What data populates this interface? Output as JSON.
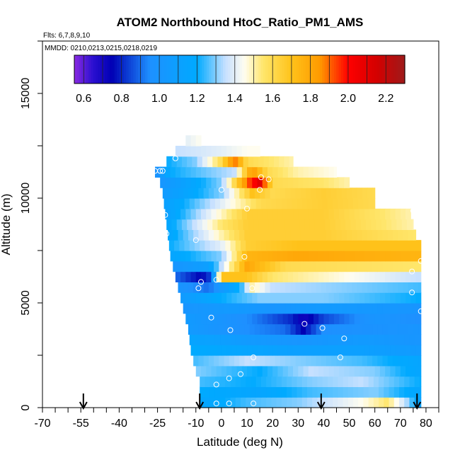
{
  "chart_data": {
    "type": "heatmap",
    "title": "ATOM2 Northbound HtoC_Ratio_PM1_AMS",
    "flights_label": "Flts: 6,7,8,9,10",
    "dates_label": "MMDD: 0210,0213,0215,0218,0219",
    "xlabel": "Latitude (deg N)",
    "ylabel": "Altitude (m)",
    "xlim": [
      -70,
      85
    ],
    "ylim": [
      0,
      17500
    ],
    "x_ticks": [
      -70,
      -55,
      -40,
      -25,
      -10,
      0,
      10,
      20,
      30,
      40,
      50,
      60,
      70,
      80
    ],
    "y_ticks": [
      0,
      5000,
      10000,
      15000
    ],
    "colorbar": {
      "ticks": [
        "0.6",
        "0.8",
        "1.0",
        "1.2",
        "1.4",
        "1.6",
        "1.8",
        "2.0",
        "2.2"
      ],
      "range": [
        0.55,
        2.3
      ],
      "stops": [
        {
          "v": 0.55,
          "c": "#8a2be2"
        },
        {
          "v": 0.65,
          "c": "#2a0fd0"
        },
        {
          "v": 0.75,
          "c": "#0000b4"
        },
        {
          "v": 0.95,
          "c": "#1e90ff"
        },
        {
          "v": 1.2,
          "c": "#00aaff"
        },
        {
          "v": 1.35,
          "c": "#c6e0ff"
        },
        {
          "v": 1.45,
          "c": "#fffdf0"
        },
        {
          "v": 1.55,
          "c": "#ffe66b"
        },
        {
          "v": 1.7,
          "c": "#ffc21a"
        },
        {
          "v": 1.85,
          "c": "#ff9a00"
        },
        {
          "v": 2.0,
          "c": "#ff0000"
        },
        {
          "v": 2.15,
          "c": "#d40000"
        },
        {
          "v": 2.3,
          "c": "#9e1a1a"
        }
      ]
    },
    "arrow_latitudes": [
      -54,
      -8.5,
      39,
      76.5
    ],
    "observation_points": [
      {
        "lat": -26,
        "alt": 11300
      },
      {
        "lat": -24,
        "alt": 11300
      },
      {
        "lat": -23,
        "alt": 11300
      },
      {
        "lat": -18,
        "alt": 11900
      },
      {
        "lat": -22,
        "alt": 9200
      },
      {
        "lat": -21.5,
        "alt": 8300
      },
      {
        "lat": -20,
        "alt": 6400
      },
      {
        "lat": -10,
        "alt": 8000
      },
      {
        "lat": -8,
        "alt": 6000
      },
      {
        "lat": -9,
        "alt": 5700
      },
      {
        "lat": -4,
        "alt": 4300
      },
      {
        "lat": -2,
        "alt": 6100
      },
      {
        "lat": -2,
        "alt": 1100
      },
      {
        "lat": -2,
        "alt": 200
      },
      {
        "lat": 0,
        "alt": 10400
      },
      {
        "lat": 3,
        "alt": 200
      },
      {
        "lat": 3,
        "alt": 1400
      },
      {
        "lat": 3.5,
        "alt": 3700
      },
      {
        "lat": 7.5,
        "alt": 1600
      },
      {
        "lat": 9,
        "alt": 7200
      },
      {
        "lat": 10,
        "alt": 9500
      },
      {
        "lat": 12,
        "alt": 5700
      },
      {
        "lat": 12.5,
        "alt": 2400
      },
      {
        "lat": 12.5,
        "alt": 200
      },
      {
        "lat": 15,
        "alt": 10400
      },
      {
        "lat": 15.5,
        "alt": 11000
      },
      {
        "lat": 18.5,
        "alt": 10900
      },
      {
        "lat": 32.5,
        "alt": 4000
      },
      {
        "lat": 39.5,
        "alt": 3800
      },
      {
        "lat": 46.5,
        "alt": 2400
      },
      {
        "lat": 48,
        "alt": 3300
      },
      {
        "lat": 75,
        "alt": 9400
      },
      {
        "lat": 74.5,
        "alt": 6500
      },
      {
        "lat": 74.5,
        "alt": 5500
      },
      {
        "lat": 78,
        "alt": 7000
      },
      {
        "lat": 79.5,
        "alt": 8700
      },
      {
        "lat": 78,
        "alt": 4600
      },
      {
        "lat": 81,
        "alt": 400
      }
    ],
    "bands": [
      {
        "alt": [
          0,
          500
        ],
        "values": [
          [
            -8.5,
            1.15
          ],
          [
            10,
            1.25
          ],
          [
            30,
            1.3
          ],
          [
            55,
            1.45
          ],
          [
            65,
            1.55
          ],
          [
            72,
            1.35
          ],
          [
            78,
            1.1
          ]
        ]
      },
      {
        "alt": [
          500,
          1000
        ],
        "values": [
          [
            -8.5,
            1.2
          ],
          [
            15,
            1.15
          ],
          [
            35,
            1.25
          ],
          [
            60,
            1.3
          ],
          [
            78,
            1.15
          ]
        ]
      },
      {
        "alt": [
          1000,
          1500
        ],
        "values": [
          [
            -8.5,
            1.25
          ],
          [
            12,
            1.2
          ],
          [
            35,
            1.3
          ],
          [
            55,
            1.35
          ],
          [
            78,
            1.2
          ]
        ]
      },
      {
        "alt": [
          1500,
          2000
        ],
        "values": [
          [
            -10,
            1.3
          ],
          [
            15,
            1.2
          ],
          [
            35,
            1.35
          ],
          [
            60,
            1.3
          ],
          [
            78,
            1.15
          ]
        ]
      },
      {
        "alt": [
          2000,
          2500
        ],
        "values": [
          [
            -11,
            1.25
          ],
          [
            10,
            1.35
          ],
          [
            30,
            1.3
          ],
          [
            55,
            1.25
          ],
          [
            78,
            1.15
          ]
        ]
      },
      {
        "alt": [
          2500,
          3000
        ],
        "values": [
          [
            -12,
            1.2
          ],
          [
            10,
            1.15
          ],
          [
            30,
            1.1
          ],
          [
            55,
            1.1
          ],
          [
            78,
            1.05
          ]
        ]
      },
      {
        "alt": [
          3000,
          3500
        ],
        "values": [
          [
            -12.5,
            1.15
          ],
          [
            10,
            1.05
          ],
          [
            30,
            1.0
          ],
          [
            55,
            1.05
          ],
          [
            78,
            1.0
          ]
        ]
      },
      {
        "alt": [
          3500,
          4000
        ],
        "values": [
          [
            -13,
            1.05
          ],
          [
            10,
            0.95
          ],
          [
            25,
            0.9
          ],
          [
            32,
            0.75
          ],
          [
            40,
            0.95
          ],
          [
            78,
            1.0
          ]
        ]
      },
      {
        "alt": [
          4000,
          4500
        ],
        "values": [
          [
            -14,
            1.05
          ],
          [
            10,
            0.95
          ],
          [
            28,
            0.8
          ],
          [
            32,
            0.7
          ],
          [
            40,
            0.85
          ],
          [
            60,
            1.0
          ],
          [
            78,
            0.95
          ]
        ]
      },
      {
        "alt": [
          4500,
          5000
        ],
        "values": [
          [
            -15,
            1.0
          ],
          [
            5,
            1.05
          ],
          [
            20,
            1.0
          ],
          [
            40,
            1.05
          ],
          [
            78,
            1.0
          ]
        ]
      },
      {
        "alt": [
          5000,
          5500
        ],
        "values": [
          [
            -16,
            1.05
          ],
          [
            0,
            1.2
          ],
          [
            15,
            1.3
          ],
          [
            40,
            1.3
          ],
          [
            78,
            1.2
          ]
        ]
      },
      {
        "alt": [
          5500,
          6000
        ],
        "values": [
          [
            -17,
            1.0
          ],
          [
            -5,
            0.9
          ],
          [
            8,
            1.25
          ],
          [
            12,
            1.5
          ],
          [
            20,
            1.35
          ],
          [
            78,
            1.25
          ]
        ]
      },
      {
        "alt": [
          6000,
          6500
        ],
        "values": [
          [
            -18,
            0.9
          ],
          [
            -8,
            0.75
          ],
          [
            -4,
            0.85
          ],
          [
            0,
            1.7
          ],
          [
            10,
            1.7
          ],
          [
            20,
            1.55
          ],
          [
            50,
            1.45
          ],
          [
            78,
            1.35
          ]
        ]
      },
      {
        "alt": [
          6500,
          7000
        ],
        "values": [
          [
            -19,
            1.0
          ],
          [
            -5,
            1.1
          ],
          [
            2,
            1.45
          ],
          [
            10,
            1.8
          ],
          [
            25,
            1.6
          ],
          [
            78,
            1.55
          ]
        ]
      },
      {
        "alt": [
          7000,
          7500
        ],
        "values": [
          [
            -20,
            1.15
          ],
          [
            0,
            1.3
          ],
          [
            10,
            1.75
          ],
          [
            30,
            1.8
          ],
          [
            78,
            1.75
          ]
        ]
      },
      {
        "alt": [
          7500,
          8000
        ],
        "values": [
          [
            -20.5,
            1.2
          ],
          [
            0,
            1.4
          ],
          [
            10,
            1.65
          ],
          [
            30,
            1.7
          ],
          [
            78,
            1.7
          ]
        ]
      },
      {
        "alt": [
          8000,
          8500
        ],
        "values": [
          [
            -21,
            1.15
          ],
          [
            0,
            1.5
          ],
          [
            10,
            1.65
          ],
          [
            40,
            1.65
          ],
          [
            76,
            1.55
          ]
        ]
      },
      {
        "alt": [
          8500,
          9000
        ],
        "values": [
          [
            -21.5,
            1.15
          ],
          [
            0,
            1.55
          ],
          [
            10,
            1.65
          ],
          [
            40,
            1.65
          ],
          [
            75,
            1.5
          ]
        ]
      },
      {
        "alt": [
          9000,
          9500
        ],
        "values": [
          [
            -22,
            1.1
          ],
          [
            -5,
            1.4
          ],
          [
            10,
            1.65
          ],
          [
            40,
            1.65
          ],
          [
            74,
            1.5
          ]
        ]
      },
      {
        "alt": [
          9500,
          10000
        ],
        "values": [
          [
            -22.5,
            1.1
          ],
          [
            0,
            1.4
          ],
          [
            15,
            1.6
          ],
          [
            40,
            1.65
          ],
          [
            60,
            1.6
          ]
        ]
      },
      {
        "alt": [
          10000,
          10500
        ],
        "values": [
          [
            -23,
            1.05
          ],
          [
            0,
            1.3
          ],
          [
            12,
            1.7
          ],
          [
            20,
            1.6
          ],
          [
            40,
            1.65
          ],
          [
            60,
            1.6
          ]
        ]
      },
      {
        "alt": [
          10500,
          11000
        ],
        "values": [
          [
            -24,
            1.0
          ],
          [
            0,
            1.3
          ],
          [
            10,
            1.9
          ],
          [
            15,
            2.1
          ],
          [
            20,
            1.6
          ],
          [
            40,
            1.55
          ],
          [
            50,
            1.5
          ]
        ]
      },
      {
        "alt": [
          11000,
          11500
        ],
        "values": [
          [
            -26,
            0.95
          ],
          [
            -20,
            1.2
          ],
          [
            5,
            1.35
          ],
          [
            12,
            1.85
          ],
          [
            18,
            1.6
          ],
          [
            30,
            1.5
          ],
          [
            45,
            1.45
          ]
        ]
      },
      {
        "alt": [
          11500,
          12000
        ],
        "values": [
          [
            -21.5,
            1.2
          ],
          [
            -10,
            1.3
          ],
          [
            0,
            1.6
          ],
          [
            5,
            1.9
          ],
          [
            10,
            1.6
          ],
          [
            28,
            1.5
          ]
        ]
      },
      {
        "alt": [
          12000,
          12500
        ],
        "values": [
          [
            -18,
            1.35
          ],
          [
            0,
            1.4
          ],
          [
            10,
            1.45
          ],
          [
            15,
            1.45
          ]
        ]
      },
      {
        "alt": [
          12500,
          13000
        ],
        "values": [
          [
            -14,
            1.4
          ],
          [
            -8,
            1.45
          ]
        ]
      }
    ]
  }
}
